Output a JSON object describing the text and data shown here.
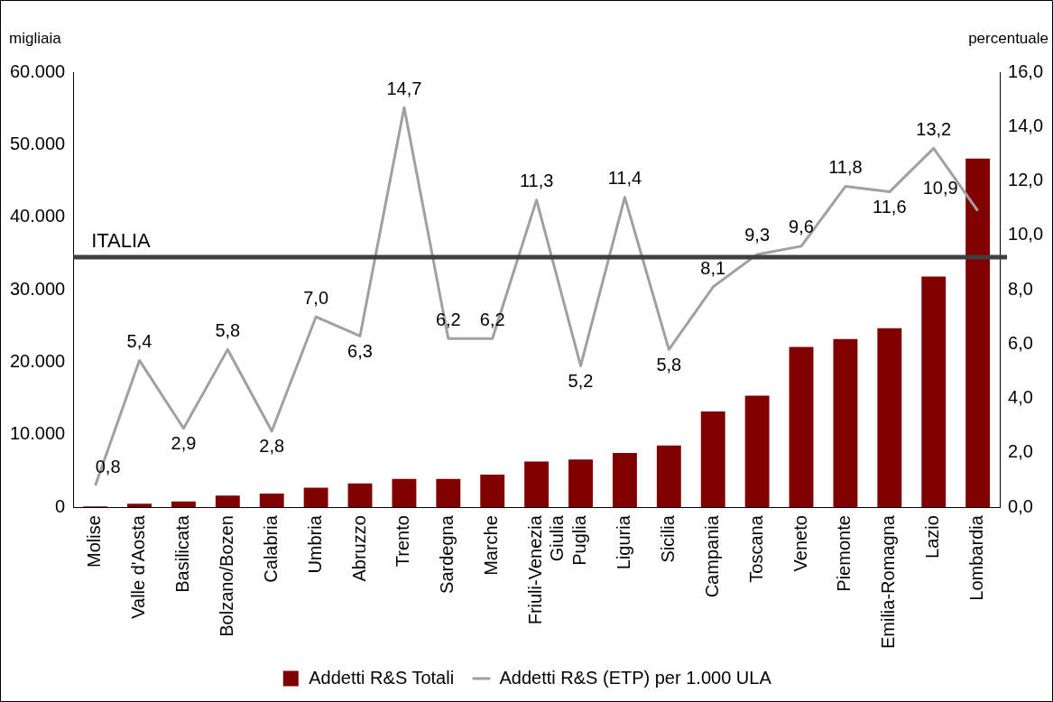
{
  "chart_data": {
    "type": "bar",
    "ylabel": "migliaia",
    "y2label": "percentuale",
    "categories": [
      "Molise",
      "Valle d'Aosta",
      "Basilicata",
      "Bolzano/Bozen",
      "Calabria",
      "Umbria",
      "Abruzzo",
      "Trento",
      "Sardegna",
      "Marche",
      "Friuli-Venezia Giulia",
      "Puglia",
      "Liguria",
      "Sicilia",
      "Campania",
      "Toscana",
      "Veneto",
      "Piemonte",
      "Emilia-Romagna",
      "Lazio",
      "Lombardia"
    ],
    "series": [
      {
        "name": "Addetti R&S Totali",
        "color": "#800000",
        "values": [
          100,
          500,
          800,
          1600,
          1900,
          2700,
          3300,
          3900,
          3900,
          4500,
          6300,
          6600,
          7500,
          8500,
          13200,
          15400,
          22100,
          23200,
          24700,
          31800,
          48100
        ]
      },
      {
        "name": "Addetti R&S (ETP) per 1.000 ULA",
        "type": "line",
        "axis": "y2",
        "color": "#a0a0a0",
        "marker": "none",
        "values": [
          0.8,
          5.4,
          2.9,
          5.8,
          2.8,
          7.0,
          6.3,
          14.7,
          6.2,
          6.2,
          11.3,
          5.2,
          11.4,
          5.8,
          8.1,
          9.3,
          9.6,
          11.8,
          11.6,
          13.2,
          10.9
        ],
        "value_labels": [
          "0,8",
          "5,4",
          "2,9",
          "5,8",
          "2,8",
          "7,0",
          "6,3",
          "14,7",
          "6,2",
          "6,2",
          "11,3",
          "5,2",
          "11,4",
          "5,8",
          "8,1",
          "9,3",
          "9,6",
          "11,8",
          "11,6",
          "13,2",
          "10,9"
        ]
      }
    ],
    "ylim": [
      0,
      60000
    ],
    "yticks": [
      {
        "value": 0,
        "label": "0"
      },
      {
        "value": 10000,
        "label": "10.000"
      },
      {
        "value": 20000,
        "label": "20.000"
      },
      {
        "value": 30000,
        "label": "30.000"
      },
      {
        "value": 40000,
        "label": "40.000"
      },
      {
        "value": 50000,
        "label": "50.000"
      },
      {
        "value": 60000,
        "label": "60.000"
      }
    ],
    "y2lim": [
      0,
      16
    ],
    "y2ticks": [
      {
        "value": 0,
        "label": "0,0"
      },
      {
        "value": 2,
        "label": "2,0"
      },
      {
        "value": 4,
        "label": "4,0"
      },
      {
        "value": 6,
        "label": "6,0"
      },
      {
        "value": 8,
        "label": "8,0"
      },
      {
        "value": 10,
        "label": "10,0"
      },
      {
        "value": 12,
        "label": "12,0"
      },
      {
        "value": 14,
        "label": "14,0"
      },
      {
        "value": 16,
        "label": "16,0"
      }
    ],
    "ref_lines": [
      {
        "axis": "y2",
        "value": 9.2,
        "label": "ITALIA",
        "color": "#404040"
      }
    ],
    "grid": false,
    "legend": "bottom"
  }
}
